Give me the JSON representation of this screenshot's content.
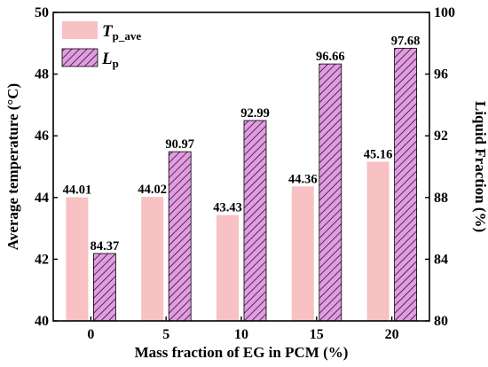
{
  "chart_data": {
    "type": "bar",
    "x": [
      0,
      5,
      10,
      15,
      20
    ],
    "categories": [
      "0",
      "5",
      "10",
      "15",
      "20"
    ],
    "xlabel": "Mass fraction of EG in PCM (%)",
    "ylabel": "Average temperature (°C)",
    "ylabel_right": "Liquid Fraction (%)",
    "ylim": [
      40,
      50
    ],
    "ylim_right": [
      80,
      100
    ],
    "yticks": [
      "40",
      "42",
      "44",
      "46",
      "48",
      "50"
    ],
    "yticks_right": [
      "80",
      "84",
      "88",
      "92",
      "96",
      "100"
    ],
    "legend_position": "top-left",
    "series": [
      {
        "key": "T",
        "name_main": "T",
        "name_sub": "p_ave",
        "axis": "left",
        "style": "solid",
        "color": "#f8c1c4",
        "values": [
          44.01,
          44.02,
          43.43,
          44.36,
          45.16
        ],
        "labels": [
          "44.01",
          "44.02",
          "43.43",
          "44.36",
          "45.16"
        ]
      },
      {
        "key": "L",
        "name_main": "L",
        "name_sub": "p",
        "axis": "right",
        "style": "hatched",
        "color": "#e29ce0",
        "hatch_color": "#2a1030",
        "values": [
          84.37,
          90.97,
          92.99,
          96.66,
          97.68
        ],
        "labels": [
          "84.37",
          "90.97",
          "92.99",
          "96.66",
          "97.68"
        ]
      }
    ]
  }
}
